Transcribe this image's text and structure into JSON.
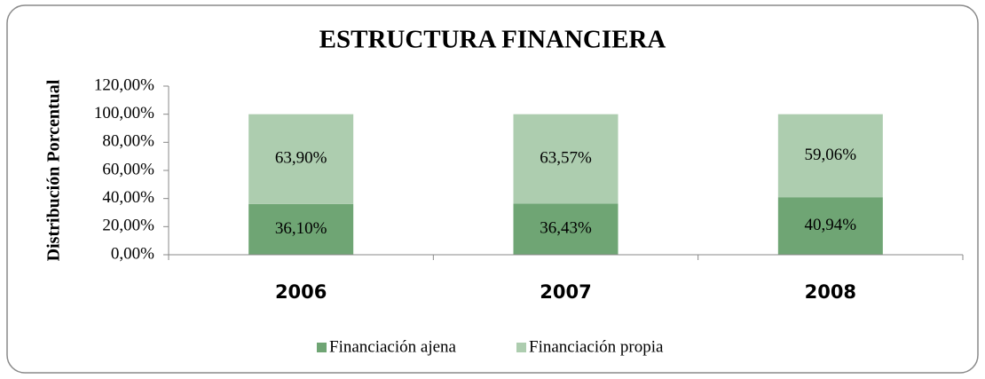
{
  "chart_data": {
    "type": "stacked_bar",
    "title": "ESTRUCTURA FINANCIERA",
    "ylabel": "Distribución Porcentual",
    "categories": [
      "2006",
      "2007",
      "2008"
    ],
    "series": [
      {
        "name": "Financiación ajena",
        "color": "#6fa574",
        "values": [
          36.1,
          36.43,
          40.94
        ],
        "value_labels": [
          "36,10%",
          "36,43%",
          "40,94%"
        ]
      },
      {
        "name": "Financiación propia",
        "color": "#adcdaf",
        "values": [
          63.9,
          63.57,
          59.06
        ],
        "value_labels": [
          "63,90%",
          "63,57%",
          "59,06%"
        ]
      }
    ],
    "ylim": [
      0,
      120
    ],
    "yticks": [
      {
        "value": 0,
        "label": "0,00%"
      },
      {
        "value": 20,
        "label": "20,00%"
      },
      {
        "value": 40,
        "label": "40,00%"
      },
      {
        "value": 60,
        "label": "60,00%"
      },
      {
        "value": 80,
        "label": "80,00%"
      },
      {
        "value": 100,
        "label": "100,00%"
      },
      {
        "value": 120,
        "label": "120,00%"
      }
    ],
    "legend": "bottom"
  }
}
